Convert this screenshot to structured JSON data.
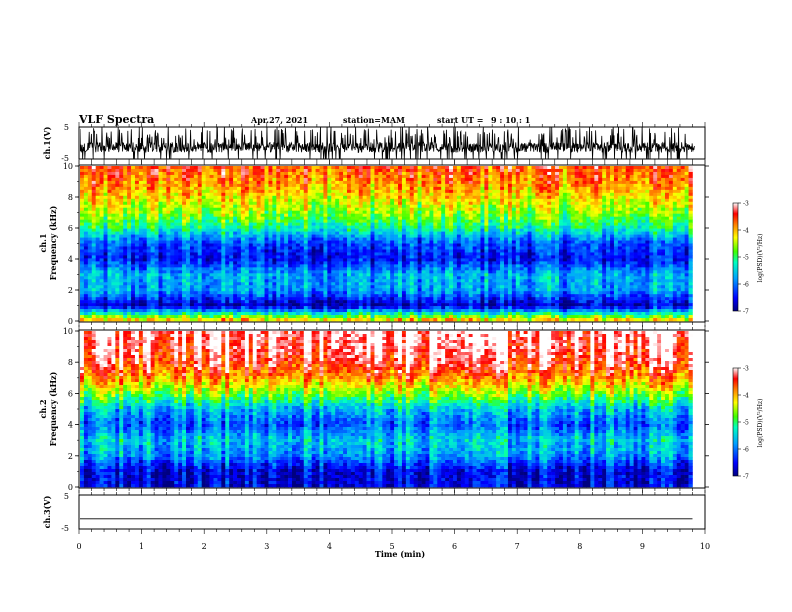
{
  "header": {
    "title": "VLF Spectra",
    "date": "Apr.27, 2021",
    "station": "station=MAM",
    "start_label": "start  UT =",
    "start_time": "9 : 10 : 1"
  },
  "chart_data": [
    {
      "type": "line",
      "name": "ch1-waveform",
      "ylabel": "ch.1(V)",
      "ylim": [
        -5,
        5
      ],
      "yticks": [
        "5",
        "-5"
      ],
      "xlim": [
        0,
        10
      ]
    },
    {
      "type": "heatmap",
      "name": "ch1-spectrogram",
      "ylabel": "Frequency (kHz)",
      "channel_label": "ch.1",
      "ylim": [
        0,
        10
      ],
      "yticks": [
        "10",
        "8",
        "6",
        "4",
        "2",
        "0"
      ],
      "xlim": [
        0,
        9.8
      ],
      "colorbar": {
        "label": "log(PSD)(V²/Hz)",
        "range": [
          -7,
          -3
        ],
        "ticks": [
          "-3",
          "-4",
          "-5",
          "-6",
          "-7"
        ]
      },
      "intensity_profile_by_freq_kHz": [
        {
          "f": 0.3,
          "logpsd": -4.8
        },
        {
          "f": 1.0,
          "logpsd": -6.8
        },
        {
          "f": 2.0,
          "logpsd": -5.8
        },
        {
          "f": 3.0,
          "logpsd": -5.7
        },
        {
          "f": 4.0,
          "logpsd": -6.5
        },
        {
          "f": 5.0,
          "logpsd": -6.2
        },
        {
          "f": 6.0,
          "logpsd": -5.2
        },
        {
          "f": 7.0,
          "logpsd": -4.6
        },
        {
          "f": 8.0,
          "logpsd": -4.2
        },
        {
          "f": 9.0,
          "logpsd": -3.8
        },
        {
          "f": 10.0,
          "logpsd": -3.6
        }
      ]
    },
    {
      "type": "heatmap",
      "name": "ch2-spectrogram",
      "ylabel": "Frequency (kHz)",
      "channel_label": "ch.2",
      "ylim": [
        0,
        10
      ],
      "yticks": [
        "10",
        "8",
        "6",
        "4",
        "2",
        "0"
      ],
      "xlim": [
        0,
        9.8
      ],
      "colorbar": {
        "label": "log(PSD)(V²/Hz)",
        "range": [
          -7,
          -3
        ],
        "ticks": [
          "-3",
          "-4",
          "-5",
          "-6",
          "-7"
        ]
      },
      "intensity_profile_by_freq_kHz": [
        {
          "f": 0.3,
          "logpsd": -6.6
        },
        {
          "f": 1.0,
          "logpsd": -6.6
        },
        {
          "f": 2.0,
          "logpsd": -5.8
        },
        {
          "f": 3.0,
          "logpsd": -5.5
        },
        {
          "f": 4.0,
          "logpsd": -6.1
        },
        {
          "f": 5.0,
          "logpsd": -5.6
        },
        {
          "f": 6.0,
          "logpsd": -4.6
        },
        {
          "f": 7.0,
          "logpsd": -3.8
        },
        {
          "f": 8.0,
          "logpsd": -3.3
        },
        {
          "f": 9.0,
          "logpsd": -3.1
        },
        {
          "f": 10.0,
          "logpsd": -3.0
        }
      ]
    },
    {
      "type": "line",
      "name": "ch3-waveform",
      "ylabel": "ch.3(V)",
      "ylim": [
        -5,
        5
      ],
      "yticks": [
        "5",
        "-5"
      ],
      "constant_value": -2,
      "xlim": [
        0,
        9.8
      ]
    }
  ],
  "time_axis": {
    "label": "Time (min)",
    "range": [
      0,
      10
    ],
    "ticks": [
      "0",
      "1",
      "2",
      "3",
      "4",
      "5",
      "6",
      "7",
      "8",
      "9",
      "10"
    ]
  },
  "colors": {
    "colormap": [
      "#0000a0",
      "#0000ff",
      "#00c8ff",
      "#00ff80",
      "#ffff00",
      "#ff8000",
      "#ff0000",
      "#ffffff"
    ]
  }
}
